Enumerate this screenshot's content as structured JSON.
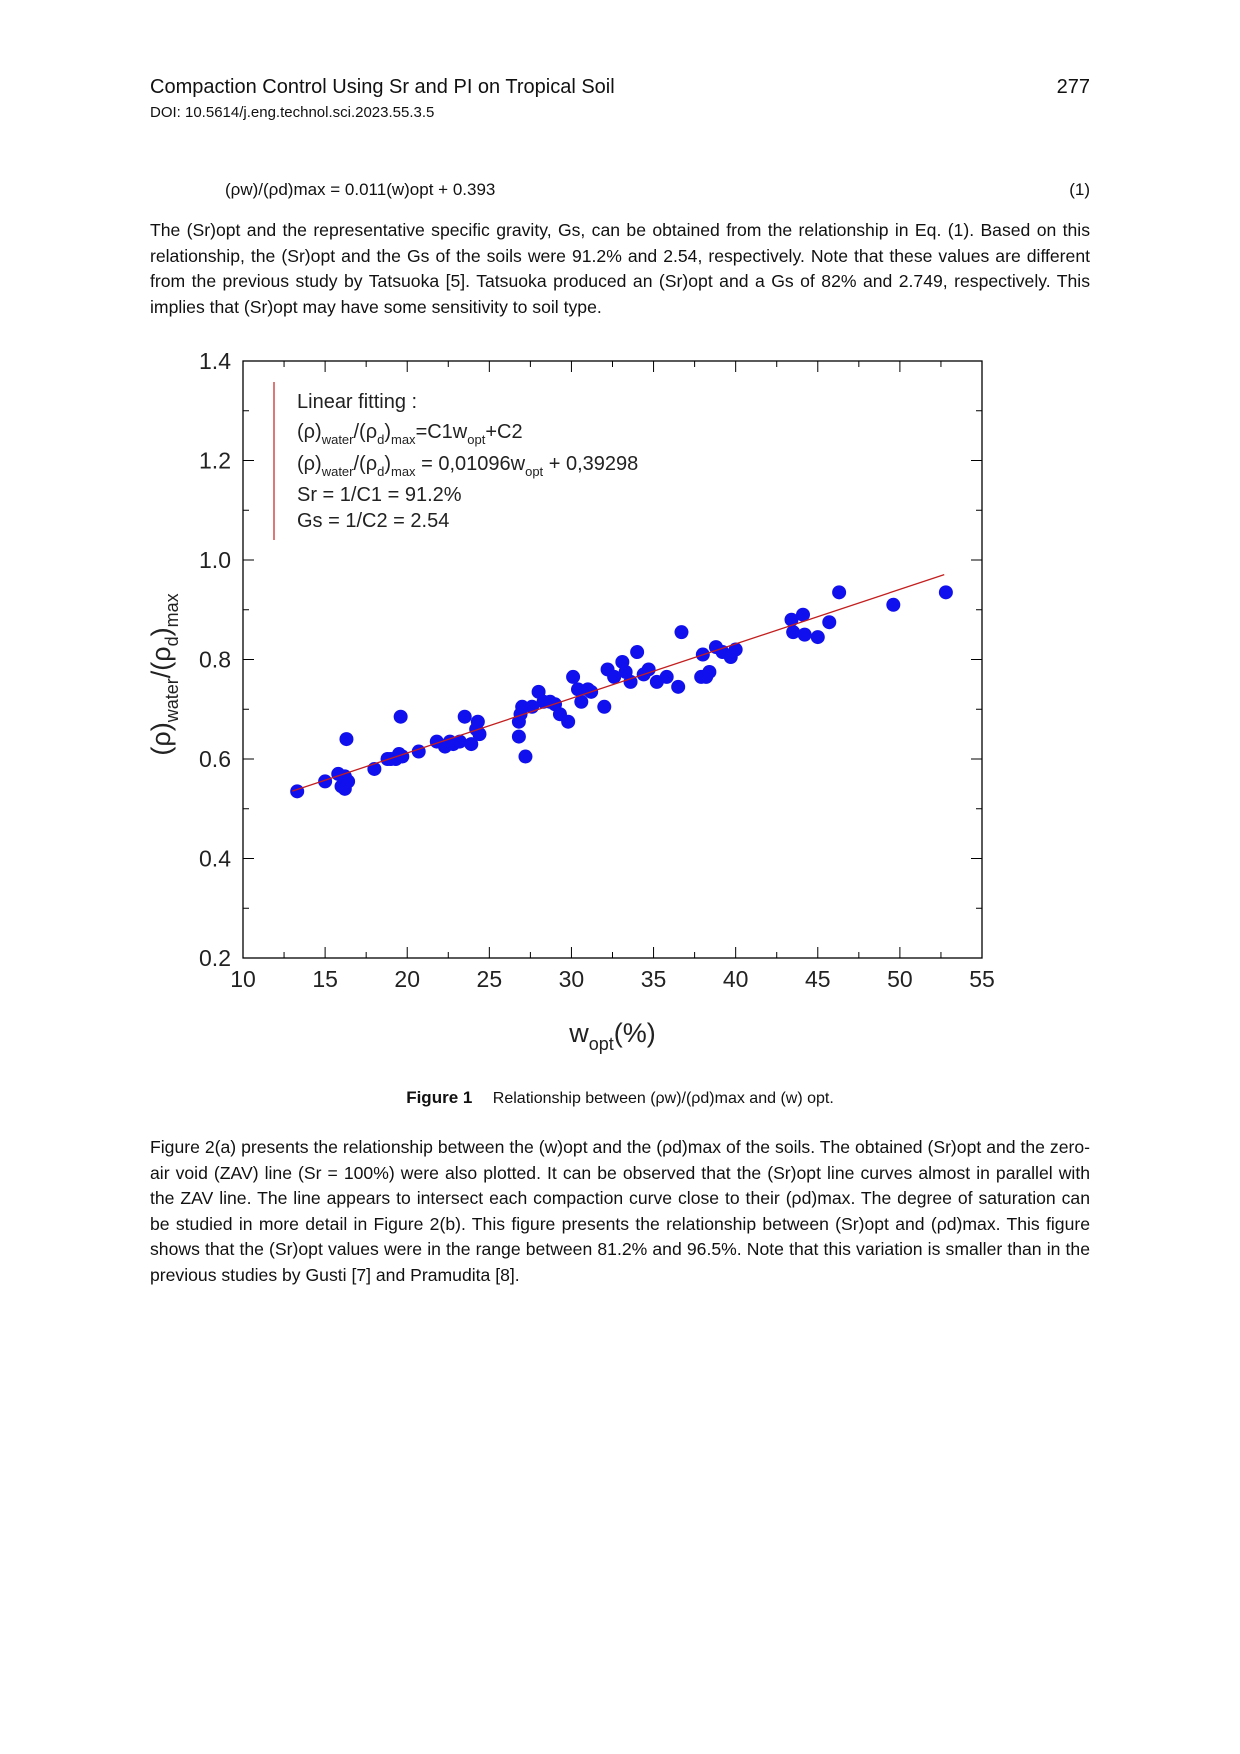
{
  "header": {
    "title": "Compaction Control Using Sr and PI on Tropical Soil",
    "page_number": "277",
    "doi": "DOI: 10.5614/j.eng.technol.sci.2023.55.3.5"
  },
  "equation": {
    "text": "(ρw)/(ρd)max = 0.011(w)opt + 0.393",
    "number": "(1)"
  },
  "paragraph1": "The (Sr)opt and the representative specific gravity, Gs, can be obtained from the relationship in Eq. (1). Based on this relationship, the (Sr)opt and the Gs of the soils were 91.2% and 2.54, respectively. Note that these values are different from the previous study by Tatsuoka [5]. Tatsuoka produced an (Sr)opt and a Gs of 82% and 2.749, respectively. This implies that (Sr)opt may have some sensitivity to soil type.",
  "figure": {
    "caption_label": "Figure 1",
    "caption_text": "Relationship between (ρw)/(ρd)max and (w) opt.",
    "annotation": [
      "Linear fitting :",
      "(ρ)water/(ρd)max=C1wopt+C2",
      "(ρ)water/(ρd)max = 0,01096wopt + 0,39298",
      "Sr = 1/C1 = 91.2%",
      "Gs = 1/C2 = 2.54"
    ]
  },
  "chart_data": {
    "type": "scatter",
    "xlabel": "wopt(%)",
    "ylabel": "(ρ)water/(ρd)max",
    "xlim": [
      10,
      55
    ],
    "ylim": [
      0.2,
      1.4
    ],
    "xticks": [
      "10",
      "15",
      "20",
      "25",
      "30",
      "35",
      "40",
      "45",
      "50",
      "55"
    ],
    "yticks": [
      "0.2",
      "0.4",
      "0.6",
      "0.8",
      "1.0",
      "1.2",
      "1.4"
    ],
    "marker_color": "#1010ee",
    "fit_line_color": "#c41e1e",
    "fit": {
      "slope": 0.01096,
      "intercept": 0.39298,
      "x_range": [
        13,
        52.7
      ]
    },
    "x": [
      13.3,
      15.0,
      15.8,
      16.0,
      16.2,
      16.3,
      16.4,
      16.2,
      18.0,
      18.8,
      19.0,
      19.3,
      19.5,
      19.6,
      19.7,
      20.7,
      21.8,
      22.3,
      22.6,
      22.8,
      23.2,
      23.5,
      23.9,
      24.2,
      24.3,
      24.4,
      26.8,
      26.8,
      26.9,
      27.0,
      27.2,
      27.6,
      28.0,
      28.3,
      28.7,
      29.0,
      29.3,
      29.8,
      30.1,
      30.4,
      30.6,
      31.0,
      31.2,
      32.0,
      32.2,
      32.6,
      33.1,
      33.3,
      33.6,
      34.0,
      34.4,
      34.7,
      35.2,
      35.8,
      36.5,
      36.7,
      37.9,
      38.0,
      38.2,
      38.4,
      38.8,
      39.2,
      39.7,
      40.0,
      43.4,
      43.5,
      44.1,
      44.2,
      45.0,
      45.7,
      46.3,
      49.6,
      52.8
    ],
    "y": [
      0.535,
      0.555,
      0.57,
      0.545,
      0.565,
      0.64,
      0.555,
      0.54,
      0.58,
      0.6,
      0.6,
      0.6,
      0.61,
      0.685,
      0.605,
      0.615,
      0.635,
      0.625,
      0.635,
      0.63,
      0.635,
      0.685,
      0.63,
      0.66,
      0.675,
      0.65,
      0.645,
      0.675,
      0.69,
      0.705,
      0.605,
      0.705,
      0.735,
      0.715,
      0.715,
      0.71,
      0.69,
      0.675,
      0.765,
      0.74,
      0.715,
      0.74,
      0.735,
      0.705,
      0.78,
      0.765,
      0.795,
      0.775,
      0.755,
      0.815,
      0.77,
      0.78,
      0.755,
      0.765,
      0.745,
      0.855,
      0.765,
      0.81,
      0.765,
      0.775,
      0.825,
      0.815,
      0.805,
      0.82,
      0.88,
      0.855,
      0.89,
      0.85,
      0.845,
      0.875,
      0.935,
      0.91,
      0.935
    ]
  },
  "paragraph2": "Figure 2(a) presents the relationship between the (w)opt and the (ρd)max of the soils. The obtained (Sr)opt and the zero-air void (ZAV) line (Sr = 100%) were also plotted. It can be observed that the (Sr)opt line curves almost in parallel with the ZAV line. The line appears to intersect each compaction curve close to their (ρd)max. The degree of saturation can be studied in more detail in Figure 2(b). This figure presents the relationship between (Sr)opt and (ρd)max. This figure shows that the (Sr)opt values were in the range between 81.2% and 96.5%. Note that this variation is smaller than in the previous studies by Gusti [7]  and Pramudita [8]."
}
